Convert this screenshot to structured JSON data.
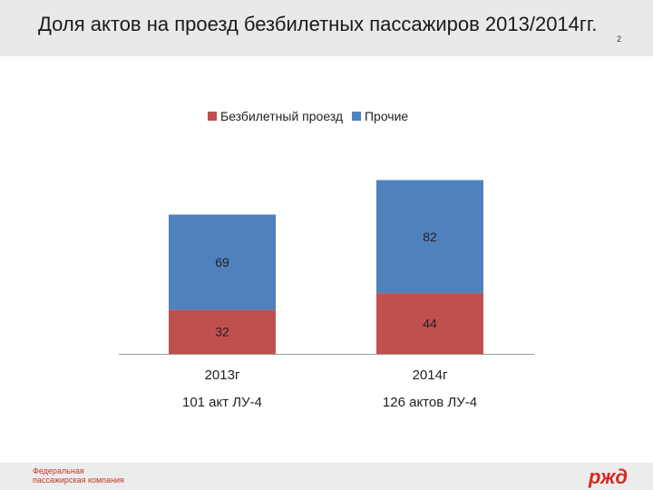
{
  "header": {
    "title": "Доля актов на проезд безбилетных пассажиров 2013/2014гг.",
    "slide_number": "2"
  },
  "colors": {
    "ticketless": "#c0504d",
    "other": "#4f81bd"
  },
  "chart_data": {
    "type": "bar",
    "stacked": true,
    "categories": [
      "2013г",
      "2014г"
    ],
    "sub_labels": [
      "101 акт ЛУ-4",
      "126 актов  ЛУ-4"
    ],
    "series": [
      {
        "name": "Безбилетный проезд",
        "values": [
          32,
          44
        ]
      },
      {
        "name": "Прочие",
        "values": [
          69,
          82
        ]
      }
    ],
    "legend_position": "top",
    "ylim": [
      0,
      140
    ],
    "grid": false
  },
  "footer": {
    "company_line1": "Федеральная",
    "company_line2": "пассажирская компания",
    "logo_text": "РЖД"
  }
}
